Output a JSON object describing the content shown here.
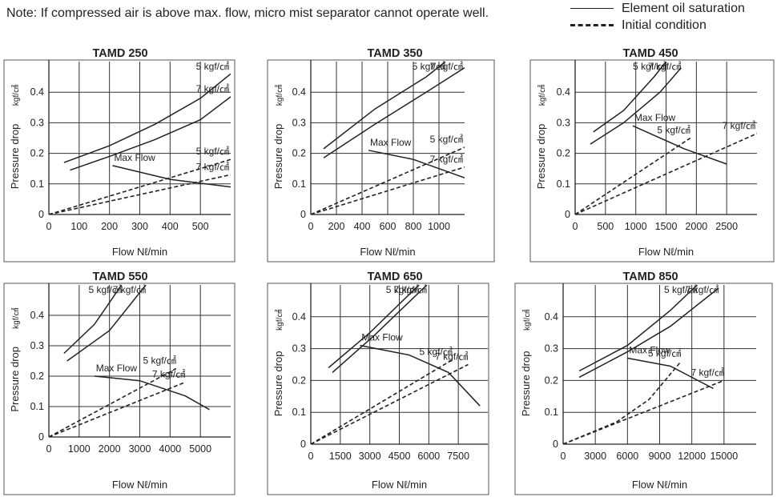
{
  "note": "Note: If compressed air is above max. flow, micro mist separator cannot operate well.",
  "legend": {
    "solid": "Element oil saturation",
    "dashed": "Initial condition"
  },
  "colors": {
    "line": "#222222",
    "grid": "#222222",
    "text": "#222222"
  },
  "chart_data": [
    {
      "type": "line",
      "title": "TAMD 250",
      "xlabel": "Flow Nℓ/min",
      "ylabel": "Pressure drop",
      "ylabel_unit": "kgf/㎠",
      "xlim": [
        0,
        600
      ],
      "ylim": [
        0,
        0.5
      ],
      "xticks": [
        0,
        100,
        200,
        300,
        400,
        500
      ],
      "yticks": [
        0,
        0.1,
        0.2,
        0.3,
        0.4
      ],
      "series": [
        {
          "name": "5 kgf/㎠",
          "style": "solid",
          "points": [
            [
              50,
              0.17
            ],
            [
              200,
              0.225
            ],
            [
              350,
              0.295
            ],
            [
              500,
              0.38
            ],
            [
              600,
              0.46
            ]
          ],
          "label": "5 kgf/㎠"
        },
        {
          "name": "7 kgf/㎠",
          "style": "solid",
          "points": [
            [
              70,
              0.145
            ],
            [
              200,
              0.19
            ],
            [
              350,
              0.245
            ],
            [
              500,
              0.31
            ],
            [
              600,
              0.385
            ]
          ],
          "label": "7 kgf/㎠"
        },
        {
          "name": "5 kgf/㎠ initial",
          "style": "dashed",
          "points": [
            [
              0,
              0
            ],
            [
              600,
              0.18
            ]
          ],
          "label": "5 kgf/㎠"
        },
        {
          "name": "7 kgf/㎠ initial",
          "style": "dashed",
          "points": [
            [
              0,
              0
            ],
            [
              600,
              0.13
            ]
          ],
          "label": "7 kgf/㎠"
        },
        {
          "name": "Max Flow",
          "style": "solid",
          "points": [
            [
              210,
              0.16
            ],
            [
              400,
              0.115
            ],
            [
              600,
              0.09
            ]
          ],
          "label": "Max Flow"
        }
      ]
    },
    {
      "type": "line",
      "title": "TAMD 350",
      "xlabel": "Flow Nℓ/min",
      "ylabel": "Pressure drop",
      "ylabel_unit": "kgf/㎠",
      "xlim": [
        0,
        1200
      ],
      "ylim": [
        0,
        0.5
      ],
      "xticks": [
        0,
        200,
        400,
        600,
        800,
        1000
      ],
      "yticks": [
        0,
        0.1,
        0.2,
        0.3,
        0.4
      ],
      "series": [
        {
          "name": "5 kgf/㎠",
          "style": "solid",
          "points": [
            [
              100,
              0.215
            ],
            [
              500,
              0.345
            ],
            [
              900,
              0.45
            ],
            [
              1050,
              0.5
            ]
          ],
          "label": "5 kgf/㎠"
        },
        {
          "name": "7 kgf/㎠",
          "style": "solid",
          "points": [
            [
              100,
              0.185
            ],
            [
              500,
              0.295
            ],
            [
              900,
              0.4
            ],
            [
              1200,
              0.48
            ]
          ],
          "label": "7 kgf/㎠"
        },
        {
          "name": "5 kgf/㎠ initial",
          "style": "dashed",
          "points": [
            [
              0,
              0
            ],
            [
              1200,
              0.22
            ]
          ],
          "label": "5 kgf/㎠"
        },
        {
          "name": "7 kgf/㎠ initial",
          "style": "dashed",
          "points": [
            [
              0,
              0
            ],
            [
              1200,
              0.155
            ]
          ],
          "label": "7 kgf/㎠"
        },
        {
          "name": "Max Flow",
          "style": "solid",
          "points": [
            [
              450,
              0.21
            ],
            [
              800,
              0.18
            ],
            [
              1200,
              0.12
            ]
          ],
          "label": "Max Flow"
        }
      ]
    },
    {
      "type": "line",
      "title": "TAMD 450",
      "xlabel": "Flow Nℓ/min",
      "ylabel": "Pressure drop",
      "ylabel_unit": "kgf/㎠",
      "xlim": [
        0,
        3000
      ],
      "ylim": [
        0,
        0.5
      ],
      "xticks": [
        0,
        500,
        1000,
        1500,
        2000,
        2500
      ],
      "yticks": [
        0,
        0.1,
        0.2,
        0.3,
        0.4
      ],
      "series": [
        {
          "name": "5 kgf/㎠",
          "style": "solid",
          "points": [
            [
              300,
              0.27
            ],
            [
              800,
              0.34
            ],
            [
              1300,
              0.45
            ],
            [
              1500,
              0.5
            ]
          ],
          "label": "5 kgf/㎠"
        },
        {
          "name": "7 kgf/㎠",
          "style": "solid",
          "points": [
            [
              250,
              0.23
            ],
            [
              800,
              0.3
            ],
            [
              1400,
              0.4
            ],
            [
              1750,
              0.48
            ]
          ],
          "label": "7 kgf/㎠"
        },
        {
          "name": "5 kgf/㎠ initial",
          "style": "dashed",
          "points": [
            [
              0,
              0
            ],
            [
              1900,
              0.25
            ]
          ],
          "label": "5 kgf/㎠"
        },
        {
          "name": "7 kgf/㎠ initial",
          "style": "dashed",
          "points": [
            [
              0,
              0
            ],
            [
              3000,
              0.265
            ]
          ],
          "label": "7 kgf/㎠"
        },
        {
          "name": "Max Flow",
          "style": "solid",
          "points": [
            [
              950,
              0.29
            ],
            [
              1800,
              0.215
            ],
            [
              2500,
              0.165
            ]
          ],
          "label": "Max Flow"
        }
      ]
    },
    {
      "type": "line",
      "title": "TAMD 550",
      "xlabel": "Flow Nℓ/min",
      "ylabel": "Pressure drop",
      "ylabel_unit": "kgf/㎠",
      "xlim": [
        0,
        6000
      ],
      "ylim": [
        0,
        0.5
      ],
      "xticks": [
        0,
        1000,
        2000,
        3000,
        4000,
        5000
      ],
      "yticks": [
        0,
        0.1,
        0.2,
        0.3,
        0.4
      ],
      "series": [
        {
          "name": "5 kgf/㎠",
          "style": "solid",
          "points": [
            [
              500,
              0.275
            ],
            [
              1500,
              0.37
            ],
            [
              2400,
              0.5
            ]
          ],
          "label": "5 kgf/㎠"
        },
        {
          "name": "7 kgf/㎠",
          "style": "solid",
          "points": [
            [
              600,
              0.25
            ],
            [
              2000,
              0.35
            ],
            [
              3200,
              0.5
            ]
          ],
          "label": "7 kgf/㎠"
        },
        {
          "name": "5 kgf/㎠ initial",
          "style": "dashed",
          "points": [
            [
              0,
              0
            ],
            [
              4200,
              0.225
            ]
          ],
          "label": "5 kgf/㎠"
        },
        {
          "name": "7 kgf/㎠ initial",
          "style": "dashed",
          "points": [
            [
              0,
              0
            ],
            [
              4500,
              0.18
            ]
          ],
          "label": "7 kgf/㎠"
        },
        {
          "name": "Max Flow",
          "style": "solid",
          "points": [
            [
              1500,
              0.2
            ],
            [
              3000,
              0.185
            ],
            [
              4500,
              0.135
            ],
            [
              5300,
              0.09
            ]
          ],
          "label": "Max Flow"
        }
      ]
    },
    {
      "type": "line",
      "title": "TAMD 650",
      "xlabel": "Flow Nℓ/min",
      "ylabel": "Pressure drop",
      "ylabel_unit": "kgf/㎠",
      "xlim": [
        0,
        9000
      ],
      "ylim": [
        0,
        0.5
      ],
      "xticks": [
        0,
        1500,
        3000,
        4500,
        6000,
        7500
      ],
      "yticks": [
        0,
        0.1,
        0.2,
        0.3,
        0.4
      ],
      "series": [
        {
          "name": "5 kgf/㎠",
          "style": "solid",
          "points": [
            [
              900,
              0.24
            ],
            [
              3000,
              0.35
            ],
            [
              5500,
              0.5
            ]
          ],
          "label": "5 kgf/㎠"
        },
        {
          "name": "7 kgf/㎠",
          "style": "solid",
          "points": [
            [
              1100,
              0.225
            ],
            [
              3200,
              0.34
            ],
            [
              5900,
              0.5
            ]
          ],
          "label": "7 kgf/㎠"
        },
        {
          "name": "5 kgf/㎠ initial",
          "style": "dashed",
          "points": [
            [
              0,
              0
            ],
            [
              7200,
              0.265
            ]
          ],
          "label": "5 kgf/㎠"
        },
        {
          "name": "7 kgf/㎠ initial",
          "style": "dashed",
          "points": [
            [
              0,
              0
            ],
            [
              8000,
              0.25
            ]
          ],
          "label": "7 kgf/㎠"
        },
        {
          "name": "Max Flow",
          "style": "solid",
          "points": [
            [
              2500,
              0.31
            ],
            [
              5000,
              0.28
            ],
            [
              7000,
              0.225
            ],
            [
              8600,
              0.12
            ]
          ],
          "label": "Max Flow"
        }
      ]
    },
    {
      "type": "line",
      "title": "TAMD 850",
      "xlabel": "Flow Nℓ/min",
      "ylabel": "Pressure drop",
      "ylabel_unit": "kgf/㎠",
      "xlim": [
        0,
        18000
      ],
      "ylim": [
        0,
        0.5
      ],
      "xticks": [
        0,
        3000,
        6000,
        9000,
        12000,
        15000
      ],
      "yticks": [
        0,
        0.1,
        0.2,
        0.3,
        0.4
      ],
      "series": [
        {
          "name": "5 kgf/㎠",
          "style": "solid",
          "points": [
            [
              1500,
              0.23
            ],
            [
              6000,
              0.31
            ],
            [
              10000,
              0.42
            ],
            [
              12500,
              0.5
            ]
          ],
          "label": "5 kgf/㎠"
        },
        {
          "name": "7 kgf/㎠",
          "style": "solid",
          "points": [
            [
              1500,
              0.21
            ],
            [
              6000,
              0.29
            ],
            [
              10000,
              0.37
            ],
            [
              14500,
              0.49
            ]
          ],
          "label": "7 kgf/㎠"
        },
        {
          "name": "5 kgf/㎠ initial",
          "style": "dashed",
          "points": [
            [
              0,
              0
            ],
            [
              5000,
              0.07
            ],
            [
              8000,
              0.14
            ],
            [
              11000,
              0.26
            ]
          ],
          "label": "5 kgf/㎠"
        },
        {
          "name": "7 kgf/㎠ initial",
          "style": "dashed",
          "points": [
            [
              0,
              0
            ],
            [
              15000,
              0.2
            ]
          ],
          "label": "7 kgf/㎠"
        },
        {
          "name": "Max Flow",
          "style": "solid",
          "points": [
            [
              6000,
              0.27
            ],
            [
              10000,
              0.245
            ],
            [
              14000,
              0.175
            ]
          ],
          "label": "Max Flow"
        }
      ]
    }
  ]
}
